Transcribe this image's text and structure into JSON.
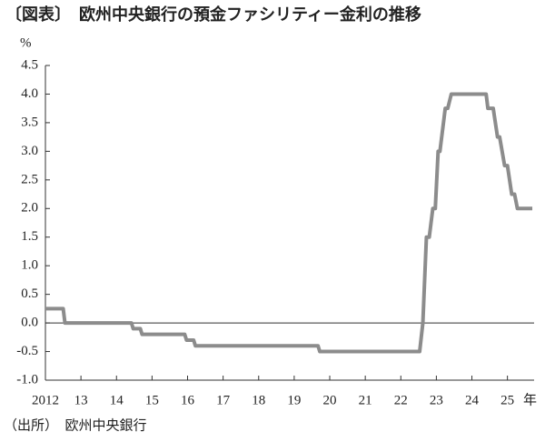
{
  "chart_data": {
    "type": "line",
    "title": "〔図表〕　欧州中央銀行の預金ファシリティー金利の推移",
    "y_unit": "%",
    "x_unit": "年",
    "source": "（出所）　欧州中央銀行",
    "series": [
      {
        "name": "預金ファシリティー金利",
        "color": "#8c8c8c",
        "x": [
          2012,
          2012.5,
          2012.55,
          2014.42,
          2014.47,
          2014.67,
          2014.72,
          2015.92,
          2015.97,
          2016.17,
          2016.22,
          2019.67,
          2019.72,
          2022.53,
          2022.62,
          2022.72,
          2022.8,
          2022.9,
          2022.97,
          2023.05,
          2023.1,
          2023.25,
          2023.32,
          2023.42,
          2024.4,
          2024.45,
          2024.6,
          2024.72,
          2024.78,
          2024.92,
          2025.0,
          2025.12,
          2025.2,
          2025.28,
          2025.7
        ],
        "values": [
          0.25,
          0.25,
          0,
          0,
          -0.1,
          -0.1,
          -0.2,
          -0.2,
          -0.3,
          -0.3,
          -0.4,
          -0.4,
          -0.5,
          -0.5,
          0,
          1.5,
          1.5,
          2.0,
          2.0,
          3.0,
          3.0,
          3.75,
          3.75,
          4.0,
          4.0,
          3.75,
          3.75,
          3.25,
          3.25,
          2.75,
          2.75,
          2.25,
          2.25,
          2.0,
          2.0
        ]
      }
    ],
    "xlim": [
      2012,
      2025.75
    ],
    "ylim": [
      -1.0,
      4.5
    ],
    "xticks": [
      2012,
      {
        "value": 2013,
        "label": "13"
      },
      {
        "value": 2014,
        "label": "14"
      },
      {
        "value": 2015,
        "label": "15"
      },
      {
        "value": 2016,
        "label": "16"
      },
      {
        "value": 2017,
        "label": "17"
      },
      {
        "value": 2018,
        "label": "18"
      },
      {
        "value": 2019,
        "label": "19"
      },
      {
        "value": 2020,
        "label": "20"
      },
      {
        "value": 2021,
        "label": "21"
      },
      {
        "value": 2022,
        "label": "22"
      },
      {
        "value": 2023,
        "label": "23"
      },
      {
        "value": 2024,
        "label": "24"
      },
      {
        "value": 2025,
        "label": "25"
      }
    ],
    "yticks": [
      4.5,
      {
        "value": 4.0,
        "label": "4.0"
      },
      3.5,
      {
        "value": 3.0,
        "label": "3.0"
      },
      2.5,
      {
        "value": 2.0,
        "label": "2.0"
      },
      1.5,
      {
        "value": 1.0,
        "label": "1.0"
      },
      0.5,
      {
        "value": 0.0,
        "label": "0.0"
      },
      -0.5,
      {
        "value": -1.0,
        "label": "-1.0"
      }
    ],
    "zero_line": true
  }
}
